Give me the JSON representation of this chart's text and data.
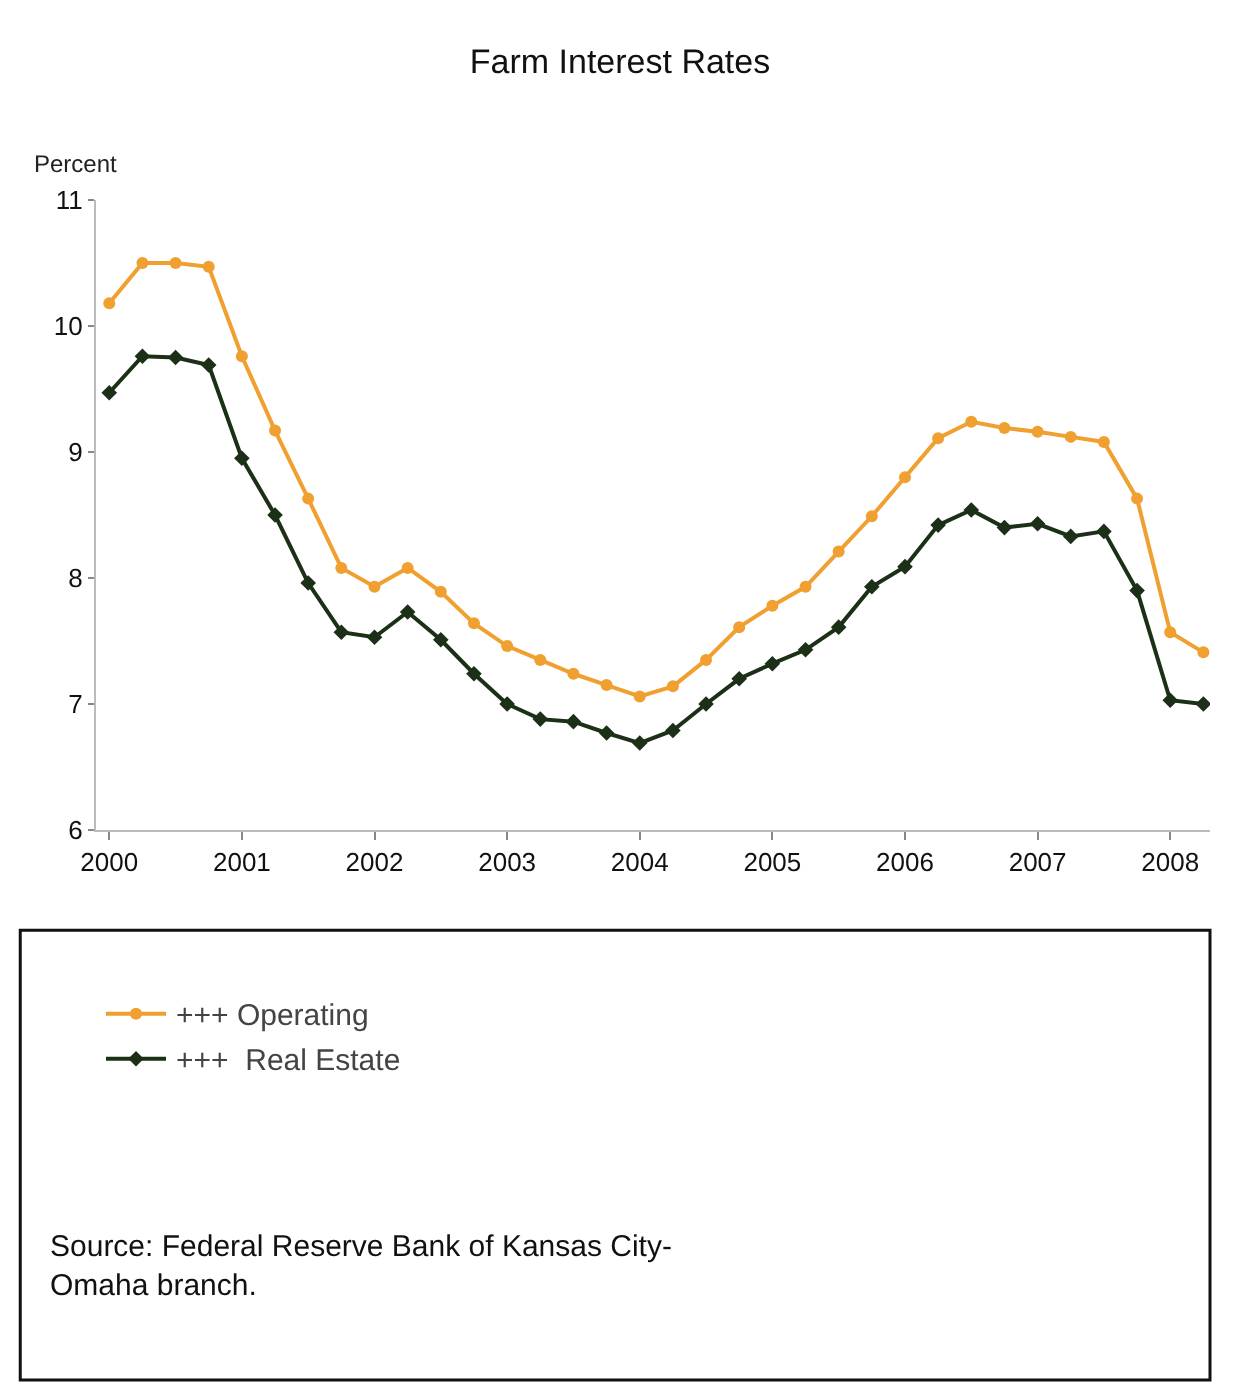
{
  "chart_data": {
    "type": "line",
    "title": "Farm Interest Rates",
    "ylabel": "Percent",
    "x": [
      2000,
      2000.25,
      2000.5,
      2000.75,
      2001,
      2001.25,
      2001.5,
      2001.75,
      2002,
      2002.25,
      2002.5,
      2002.75,
      2003,
      2003.25,
      2003.5,
      2003.75,
      2004,
      2004.25,
      2004.5,
      2004.75,
      2005,
      2005.25,
      2005.5,
      2005.75,
      2006,
      2006.25,
      2006.5,
      2006.75,
      2007,
      2007.25,
      2007.5,
      2007.75,
      2008,
      2008.25
    ],
    "series": [
      {
        "name": "+++ Operating",
        "color": "#f0a030",
        "marker": "circle",
        "values": [
          10.18,
          10.5,
          10.5,
          10.47,
          9.76,
          9.17,
          8.63,
          8.08,
          7.93,
          8.08,
          7.89,
          7.64,
          7.46,
          7.35,
          7.24,
          7.15,
          7.06,
          7.14,
          7.35,
          7.61,
          7.78,
          7.93,
          8.21,
          8.49,
          8.8,
          9.11,
          9.24,
          9.19,
          9.16,
          9.12,
          9.08,
          8.63,
          7.57,
          7.41
        ]
      },
      {
        "name": "+++  Real Estate",
        "color": "#1c3018",
        "marker": "diamond",
        "values": [
          9.47,
          9.76,
          9.75,
          9.69,
          8.95,
          8.5,
          7.96,
          7.57,
          7.53,
          7.73,
          7.51,
          7.24,
          7.0,
          6.88,
          6.86,
          6.77,
          6.69,
          6.79,
          7.0,
          7.2,
          7.32,
          7.43,
          7.61,
          7.93,
          8.09,
          8.42,
          8.54,
          8.4,
          8.43,
          8.33,
          8.37,
          7.9,
          7.03,
          7.0
        ]
      }
    ],
    "xlim": [
      1999.9,
      2008.3
    ],
    "xticks": [
      2000,
      2001,
      2002,
      2003,
      2004,
      2005,
      2006,
      2007,
      2008
    ],
    "ylim": [
      6,
      11
    ],
    "yticks": [
      6,
      7,
      8,
      9,
      10,
      11
    ],
    "grid": false,
    "legend": "bottom",
    "line_style": "solid",
    "annotations": [
      "Source: Federal Reserve Bank of Kansas City-\nOmaha branch."
    ]
  }
}
